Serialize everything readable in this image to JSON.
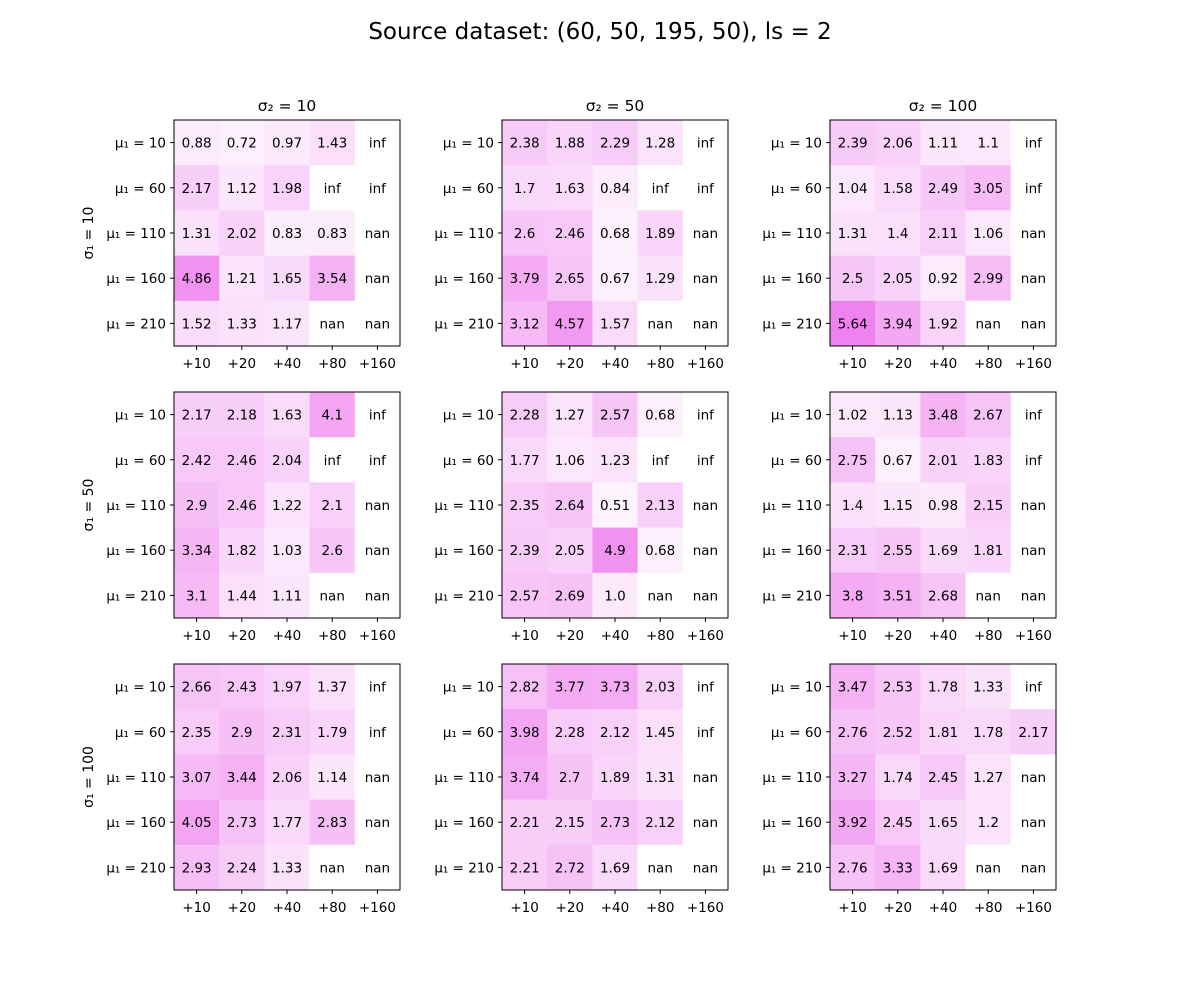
{
  "chart_data": {
    "type": "heatmap",
    "title": "Source dataset: (60, 50, 195, 50), ls = 2",
    "colormap": {
      "low": "#ffffff",
      "high": "#ee82ee",
      "vmin": 0,
      "vmax": 5.64
    },
    "grid": false,
    "x_tick_labels": [
      "+10",
      "+20",
      "+40",
      "+80",
      "+160"
    ],
    "y_tick_labels": [
      "μ₁ = 10",
      "μ₁ = 60",
      "μ₁ = 110",
      "μ₁ = 160",
      "μ₁ = 210"
    ],
    "column_titles": [
      "σ₂ = 10",
      "σ₂ = 50",
      "σ₂ = 100"
    ],
    "row_titles": [
      "σ₁ = 10",
      "σ₁ = 50",
      "σ₁ = 100"
    ],
    "panels": [
      [
        [
          [
            "0.88",
            "0.72",
            "0.97",
            "1.43",
            "inf"
          ],
          [
            "2.17",
            "1.12",
            "1.98",
            "inf",
            "inf"
          ],
          [
            "1.31",
            "2.02",
            "0.83",
            "0.83",
            "nan"
          ],
          [
            "4.86",
            "1.21",
            "1.65",
            "3.54",
            "nan"
          ],
          [
            "1.52",
            "1.33",
            "1.17",
            "nan",
            "nan"
          ]
        ],
        [
          [
            "2.38",
            "1.88",
            "2.29",
            "1.28",
            "inf"
          ],
          [
            "1.7",
            "1.63",
            "0.84",
            "inf",
            "inf"
          ],
          [
            "2.6",
            "2.46",
            "0.68",
            "1.89",
            "nan"
          ],
          [
            "3.79",
            "2.65",
            "0.67",
            "1.29",
            "nan"
          ],
          [
            "3.12",
            "4.57",
            "1.57",
            "nan",
            "nan"
          ]
        ],
        [
          [
            "2.39",
            "2.06",
            "1.11",
            "1.1",
            "inf"
          ],
          [
            "1.04",
            "1.58",
            "2.49",
            "3.05",
            "inf"
          ],
          [
            "1.31",
            "1.4",
            "2.11",
            "1.06",
            "nan"
          ],
          [
            "2.5",
            "2.05",
            "0.92",
            "2.99",
            "nan"
          ],
          [
            "5.64",
            "3.94",
            "1.92",
            "nan",
            "nan"
          ]
        ]
      ],
      [
        [
          [
            "2.17",
            "2.18",
            "1.63",
            "4.1",
            "inf"
          ],
          [
            "2.42",
            "2.46",
            "2.04",
            "inf",
            "inf"
          ],
          [
            "2.9",
            "2.46",
            "1.22",
            "2.1",
            "nan"
          ],
          [
            "3.34",
            "1.82",
            "1.03",
            "2.6",
            "nan"
          ],
          [
            "3.1",
            "1.44",
            "1.11",
            "nan",
            "nan"
          ]
        ],
        [
          [
            "2.28",
            "1.27",
            "2.57",
            "0.68",
            "inf"
          ],
          [
            "1.77",
            "1.06",
            "1.23",
            "inf",
            "inf"
          ],
          [
            "2.35",
            "2.64",
            "0.51",
            "2.13",
            "nan"
          ],
          [
            "2.39",
            "2.05",
            "4.9",
            "0.68",
            "nan"
          ],
          [
            "2.57",
            "2.69",
            "1.0",
            "nan",
            "nan"
          ]
        ],
        [
          [
            "1.02",
            "1.13",
            "3.48",
            "2.67",
            "inf"
          ],
          [
            "2.75",
            "0.67",
            "2.01",
            "1.83",
            "inf"
          ],
          [
            "1.4",
            "1.15",
            "0.98",
            "2.15",
            "nan"
          ],
          [
            "2.31",
            "2.55",
            "1.69",
            "1.81",
            "nan"
          ],
          [
            "3.8",
            "3.51",
            "2.68",
            "nan",
            "nan"
          ]
        ]
      ],
      [
        [
          [
            "2.66",
            "2.43",
            "1.97",
            "1.37",
            "inf"
          ],
          [
            "2.35",
            "2.9",
            "2.31",
            "1.79",
            "inf"
          ],
          [
            "3.07",
            "3.44",
            "2.06",
            "1.14",
            "nan"
          ],
          [
            "4.05",
            "2.73",
            "1.77",
            "2.83",
            "nan"
          ],
          [
            "2.93",
            "2.24",
            "1.33",
            "nan",
            "nan"
          ]
        ],
        [
          [
            "2.82",
            "3.77",
            "3.73",
            "2.03",
            "inf"
          ],
          [
            "3.98",
            "2.28",
            "2.12",
            "1.45",
            "inf"
          ],
          [
            "3.74",
            "2.7",
            "1.89",
            "1.31",
            "nan"
          ],
          [
            "2.21",
            "2.15",
            "2.73",
            "2.12",
            "nan"
          ],
          [
            "2.21",
            "2.72",
            "1.69",
            "nan",
            "nan"
          ]
        ],
        [
          [
            "3.47",
            "2.53",
            "1.78",
            "1.33",
            "inf"
          ],
          [
            "2.76",
            "2.52",
            "1.81",
            "1.78",
            "2.17"
          ],
          [
            "3.27",
            "1.74",
            "2.45",
            "1.27",
            "nan"
          ],
          [
            "3.92",
            "2.45",
            "1.65",
            "1.2",
            "nan"
          ],
          [
            "2.76",
            "3.33",
            "1.69",
            "nan",
            "nan"
          ]
        ]
      ]
    ]
  }
}
